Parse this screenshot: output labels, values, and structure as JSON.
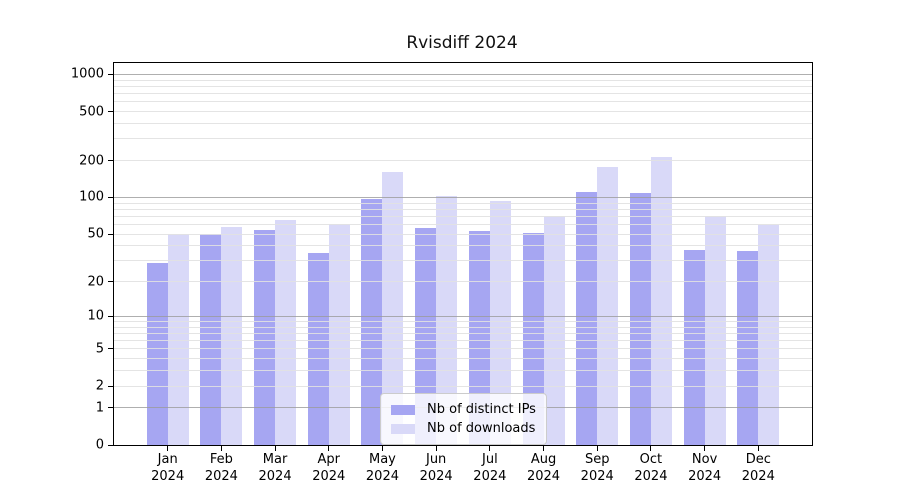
{
  "title": "Rvisdiff 2024",
  "colors": {
    "distinct_ips_bar": "#a6a6f2",
    "downloads_bar": "#d9d9f8",
    "major_gridline": "#9b9b9b",
    "minor_gridline": "#e1e1e1",
    "axis": "#000000",
    "background": "#ffffff"
  },
  "legend": {
    "items": [
      {
        "label": "Nb of distinct IPs",
        "color": "#a6a6f2"
      },
      {
        "label": "Nb of downloads",
        "color": "#d9d9f8"
      }
    ]
  },
  "chart_data": {
    "type": "bar",
    "title": "Rvisdiff 2024",
    "categories": [
      "Jan 2024",
      "Feb 2024",
      "Mar 2024",
      "Apr 2024",
      "May 2024",
      "Jun 2024",
      "Jul 2024",
      "Aug 2024",
      "Sep 2024",
      "Oct 2024",
      "Nov 2024",
      "Dec 2024"
    ],
    "series": [
      {
        "name": "Nb of distinct IPs",
        "color": "#a6a6f2",
        "values": [
          29,
          50,
          54,
          35,
          97,
          56,
          53,
          51,
          110,
          108,
          37,
          36
        ]
      },
      {
        "name": "Nb of downloads",
        "color": "#d9d9f8",
        "values": [
          50,
          57,
          66,
          61,
          163,
          103,
          94,
          71,
          177,
          215,
          70,
          60
        ]
      }
    ],
    "xlabel": "",
    "ylabel": "",
    "yscale": "log1p",
    "yticks": [
      0,
      1,
      2,
      5,
      10,
      20,
      50,
      100,
      200,
      500,
      1000
    ],
    "ylim": [
      0,
      1238
    ],
    "grid": "on",
    "legend_position": "lower center"
  }
}
